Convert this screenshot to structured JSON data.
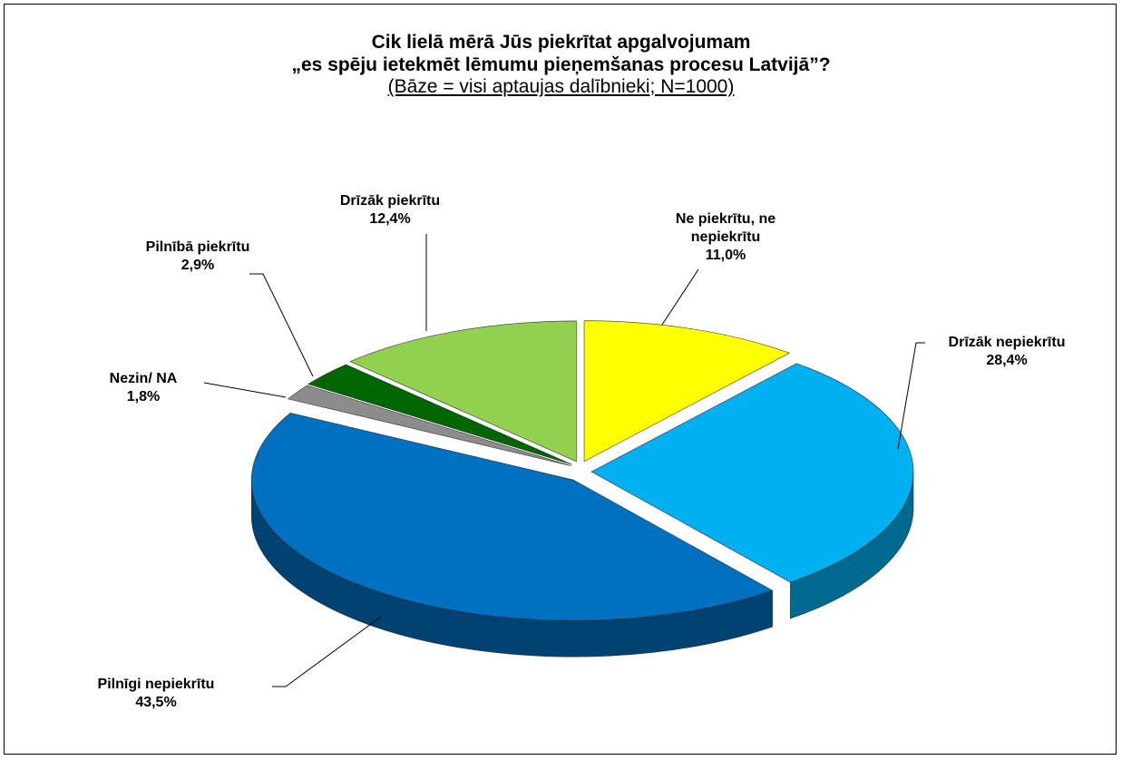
{
  "chart_data": {
    "type": "pie",
    "title": [
      "Cik lielā mērā Jūs piekrītat apgalvojumam",
      "„es spēju ietekmēt lēmumu pieņemšanas procesu Latvijā”?"
    ],
    "subtitle": "(Bāze = visi aptaujas dalībnieki; N=1000)",
    "categories": [
      "Ne piekrītu, ne nepiekrītu",
      "Drīzāk nepiekrītu",
      "Pilnīgi nepiekrītu",
      "Nezin/ NA",
      "Pilnībā piekrītu",
      "Drīzāk piekrītu"
    ],
    "values": [
      11.0,
      28.4,
      43.5,
      1.8,
      2.9,
      12.4
    ],
    "value_labels": [
      "11,0%",
      "28,4%",
      "43,5%",
      "1,8%",
      "2,9%",
      "12,4%"
    ],
    "colors": [
      "#ffff00",
      "#00b0f0",
      "#0070c0",
      "#8c8c8c",
      "#006600",
      "#92d050"
    ]
  }
}
